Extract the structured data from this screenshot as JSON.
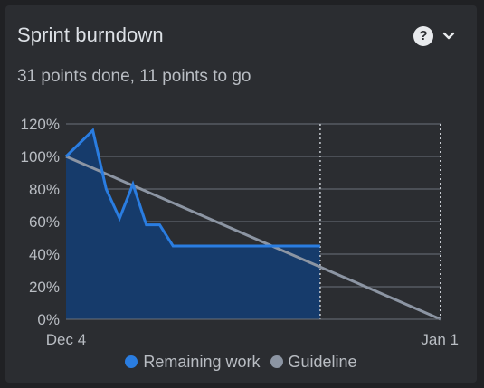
{
  "card": {
    "title": "Sprint burndown",
    "subtitle": "31 points done, 11 points to go",
    "help_icon": "?",
    "menu_icon": "chevron-down-icon"
  },
  "legend": {
    "remaining_label": "Remaining work",
    "guideline_label": "Guideline"
  },
  "colors": {
    "remaining": "#2a7de1",
    "remaining_fill": "#163b6b",
    "guideline": "#8c95a3",
    "grid": "#6b717a",
    "text": "#b9bdc3"
  },
  "chart_data": {
    "type": "line",
    "title": "",
    "xlabel": "",
    "ylabel": "",
    "ylim": [
      0,
      120
    ],
    "y_ticks": [
      "120%",
      "100%",
      "80%",
      "60%",
      "40%",
      "20%",
      "0%"
    ],
    "x_ticks": [
      {
        "label": "Dec 4",
        "day": 0
      },
      {
        "label": "Jan 1",
        "day": 28
      }
    ],
    "today_day": 19,
    "series": [
      {
        "name": "Remaining work",
        "points": [
          [
            0,
            100
          ],
          [
            2,
            116
          ],
          [
            3,
            80
          ],
          [
            4,
            62
          ],
          [
            5,
            83
          ],
          [
            6,
            58
          ],
          [
            7,
            58
          ],
          [
            8,
            45
          ],
          [
            13,
            45
          ],
          [
            19,
            45
          ]
        ]
      },
      {
        "name": "Guideline",
        "points": [
          [
            0,
            100
          ],
          [
            28,
            0
          ]
        ]
      }
    ]
  }
}
